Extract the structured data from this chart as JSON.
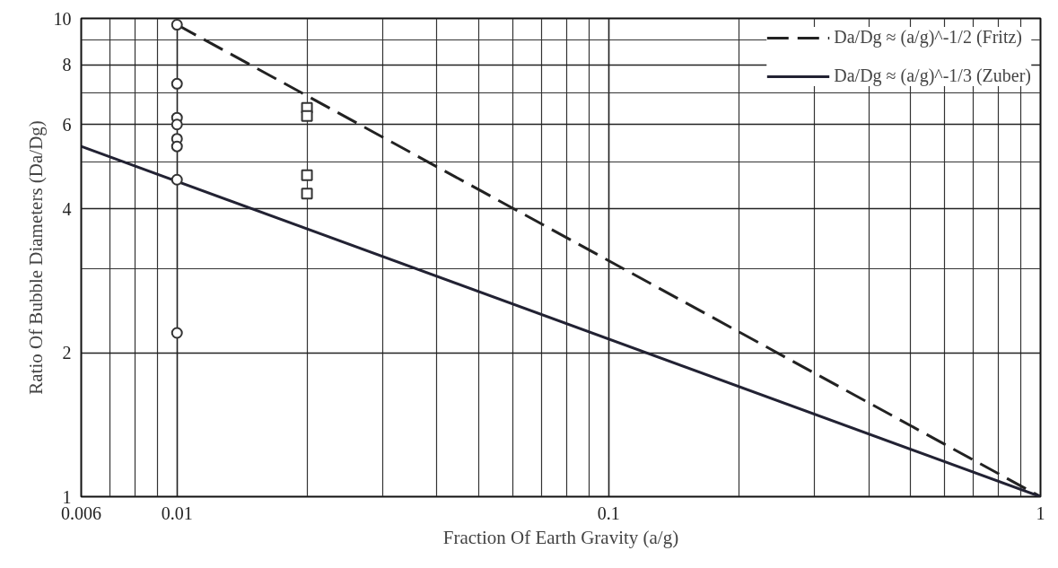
{
  "chart_data": {
    "type": "scatter",
    "xlabel": "Fraction Of Earth Gravity (a/g)",
    "ylabel": "Ratio Of Bubble Diameters (Da/Dg)",
    "log": "xy",
    "grid": true,
    "legend": "top right",
    "xlim": [
      0.006,
      1
    ],
    "ylim": [
      1,
      10
    ],
    "xticks": [
      0.006,
      0.01,
      0.1,
      1
    ],
    "yticks": [
      1,
      2,
      4,
      6,
      8,
      10
    ],
    "series": [
      {
        "type": "line",
        "name": "Da/Dg ≈ (a/g)^-1/2 (Fritz)",
        "color": "#222222",
        "line_style": "dashed",
        "x": [
          0.01,
          1
        ],
        "values": [
          9.7,
          1
        ]
      },
      {
        "type": "line",
        "name": "Da/Dg ≈ (a/g)^-1/3 (Zuber)",
        "color": "#222233",
        "line_style": "solid",
        "x": [
          0.006,
          1
        ],
        "values": [
          5.4,
          1
        ]
      },
      {
        "color": "#333333",
        "marker": "circle",
        "x": [
          0.01,
          0.01,
          0.01,
          0.01,
          0.01,
          0.01,
          0.01,
          0.01
        ],
        "values": [
          9.7,
          7.3,
          6.2,
          6.0,
          5.6,
          5.4,
          4.6,
          2.2
        ]
      },
      {
        "color": "#333333",
        "marker": "square",
        "x": [
          0.02,
          0.02,
          0.02,
          0.02
        ],
        "values": [
          6.5,
          6.25,
          4.7,
          4.3
        ]
      }
    ]
  }
}
